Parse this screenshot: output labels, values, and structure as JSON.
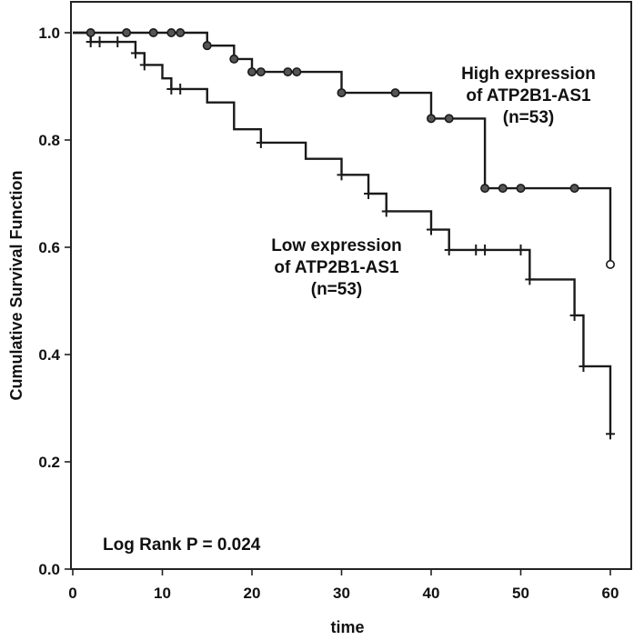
{
  "chart_data": {
    "type": "line",
    "subtype": "kaplan-meier",
    "xlabel": "time",
    "ylabel": "Cumulative Survival Function",
    "xlim": [
      0,
      65
    ],
    "ylim": [
      0,
      1.05
    ],
    "xticks": [
      "0",
      "10",
      "20",
      "30",
      "40",
      "50",
      "60"
    ],
    "yticks": [
      "0.0",
      "0.2",
      "0.4",
      "0.6",
      "0.8",
      "1.0"
    ],
    "grid": false,
    "annotation": "Log Rank P = 0.024",
    "series_labels": {
      "high": [
        "High expression",
        "of ATP2B1-AS1",
        "(n=53)"
      ],
      "low": [
        "Low expression",
        "of ATP2B1-AS1",
        "(n=53)"
      ]
    },
    "series": [
      {
        "key": "high",
        "censor_marker": "circle",
        "steps": [
          [
            0,
            1.0
          ],
          [
            15,
            0.976
          ],
          [
            18,
            0.951
          ],
          [
            20,
            0.927
          ],
          [
            30,
            0.888
          ],
          [
            40,
            0.84
          ],
          [
            46,
            0.71
          ],
          [
            60,
            0.568
          ]
        ],
        "censored": [
          [
            2,
            1.0
          ],
          [
            6,
            1.0
          ],
          [
            9,
            1.0
          ],
          [
            11,
            1.0
          ],
          [
            12,
            1.0
          ],
          [
            15,
            0.976
          ],
          [
            18,
            0.951
          ],
          [
            20,
            0.927
          ],
          [
            21,
            0.927
          ],
          [
            24,
            0.927
          ],
          [
            25,
            0.927
          ],
          [
            30,
            0.888
          ],
          [
            36,
            0.888
          ],
          [
            40,
            0.84
          ],
          [
            42,
            0.84
          ],
          [
            46,
            0.71
          ],
          [
            48,
            0.71
          ],
          [
            50,
            0.71
          ],
          [
            56,
            0.71
          ],
          [
            60,
            0.568
          ]
        ]
      },
      {
        "key": "low",
        "censor_marker": "plus",
        "steps": [
          [
            0,
            1.0
          ],
          [
            2,
            0.983
          ],
          [
            7,
            0.962
          ],
          [
            8,
            0.94
          ],
          [
            10,
            0.915
          ],
          [
            11,
            0.895
          ],
          [
            15,
            0.87
          ],
          [
            18,
            0.82
          ],
          [
            21,
            0.795
          ],
          [
            26,
            0.765
          ],
          [
            30,
            0.735
          ],
          [
            33,
            0.7
          ],
          [
            35,
            0.667
          ],
          [
            40,
            0.633
          ],
          [
            42,
            0.595
          ],
          [
            51,
            0.54
          ],
          [
            56,
            0.473
          ],
          [
            57,
            0.378
          ],
          [
            60,
            0.252
          ]
        ],
        "censored": [
          [
            2,
            0.983
          ],
          [
            3,
            0.983
          ],
          [
            5,
            0.983
          ],
          [
            7,
            0.962
          ],
          [
            8,
            0.94
          ],
          [
            11,
            0.895
          ],
          [
            12,
            0.895
          ],
          [
            21,
            0.795
          ],
          [
            30,
            0.735
          ],
          [
            33,
            0.7
          ],
          [
            35,
            0.667
          ],
          [
            40,
            0.633
          ],
          [
            42,
            0.595
          ],
          [
            45,
            0.595
          ],
          [
            46,
            0.595
          ],
          [
            50,
            0.595
          ],
          [
            51,
            0.54
          ],
          [
            56,
            0.473
          ],
          [
            57,
            0.378
          ],
          [
            60,
            0.252
          ]
        ]
      }
    ]
  }
}
